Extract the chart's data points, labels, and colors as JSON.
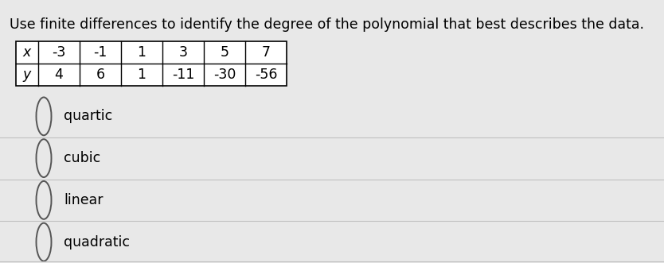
{
  "title": "Use finite differences to identify the degree of the polynomial that best describes the data.",
  "table_x_label": "x",
  "table_y_label": "y",
  "x_values": [
    "-3",
    "-1",
    "1",
    "3",
    "5",
    "7"
  ],
  "y_values": [
    "4",
    "6",
    "1",
    "-11",
    "-30",
    "-56"
  ],
  "options": [
    "quartic",
    "cubic",
    "linear",
    "quadratic"
  ],
  "bg_color": "#e8e8e8",
  "title_fontsize": 12.5,
  "option_fontsize": 12.5,
  "table_fontsize": 12.5,
  "circle_color": "#555555",
  "divider_color": "#c0c0c0"
}
